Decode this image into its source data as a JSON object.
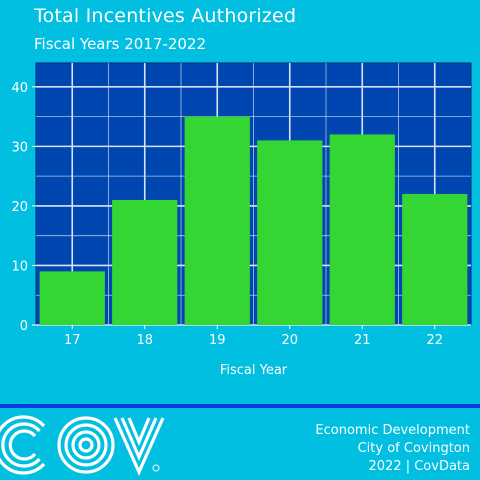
{
  "chart_data": {
    "type": "bar",
    "title": "Total Incentives Authorized",
    "subtitle": "Fiscal Years 2017-2022",
    "xlabel": "Fiscal Year",
    "ylabel": "",
    "categories": [
      "17",
      "18",
      "19",
      "20",
      "21",
      "22"
    ],
    "values": [
      9,
      21,
      35,
      31,
      32,
      22
    ],
    "ylim": [
      0,
      44
    ],
    "yticks": [
      0,
      10,
      20,
      30,
      40
    ],
    "grid": true,
    "colors": {
      "bar": "#33d633",
      "plot_background": "#0046b0",
      "grid": "#d8e4f4"
    }
  },
  "footer": {
    "line1": "Economic Development",
    "line2": "City of Covington",
    "line3": "2022 | CovData",
    "logo_text": "COV"
  }
}
